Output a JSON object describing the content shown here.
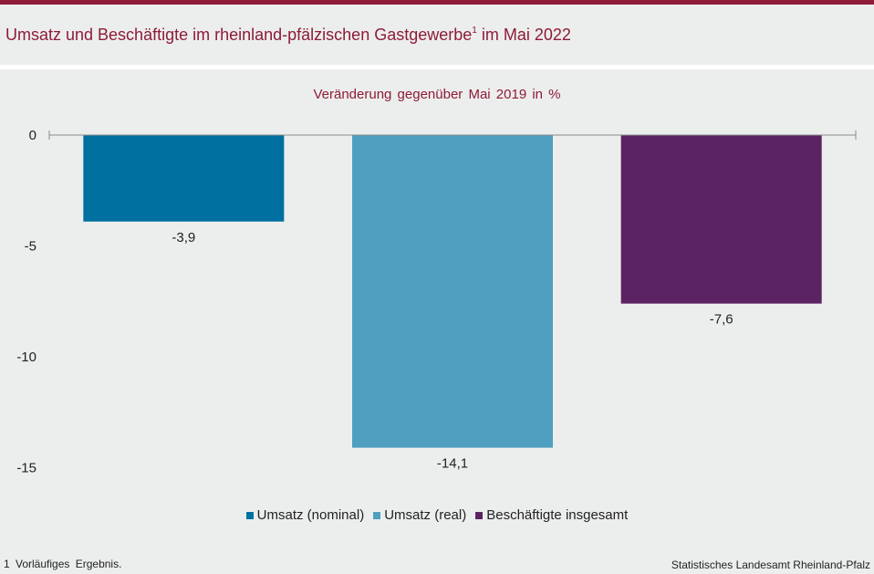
{
  "header": {
    "title": "Umsatz und Beschäftigte im rheinland-pfälzischen Gastgewerbe",
    "title_sup": "1",
    "title_suffix": " im Mai 2022"
  },
  "colors": {
    "accent": "#8e1b37",
    "series": [
      "#0070a0",
      "#4f9fc0",
      "#5b2362"
    ]
  },
  "chart_data": {
    "type": "bar",
    "subtitle": "Veränderung gegenüber Mai 2019 in %",
    "categories": [
      "Umsatz (nominal)",
      "Umsatz (real)",
      "Beschäftigte insgesamt"
    ],
    "values": [
      -3.9,
      -14.1,
      -7.6
    ],
    "value_labels": [
      "-3,9",
      "-14,1",
      "-7,6"
    ],
    "ylim": [
      -15,
      0
    ],
    "yticks": [
      0,
      -5,
      -10,
      -15
    ],
    "ytick_labels": [
      "0",
      "-5",
      "-10",
      "-15"
    ],
    "grid": false,
    "legend_position": "bottom"
  },
  "footer": {
    "footnote": "1 Vorläufiges Ergebnis.",
    "source": "Statistisches Landesamt Rheinland-Pfalz"
  }
}
